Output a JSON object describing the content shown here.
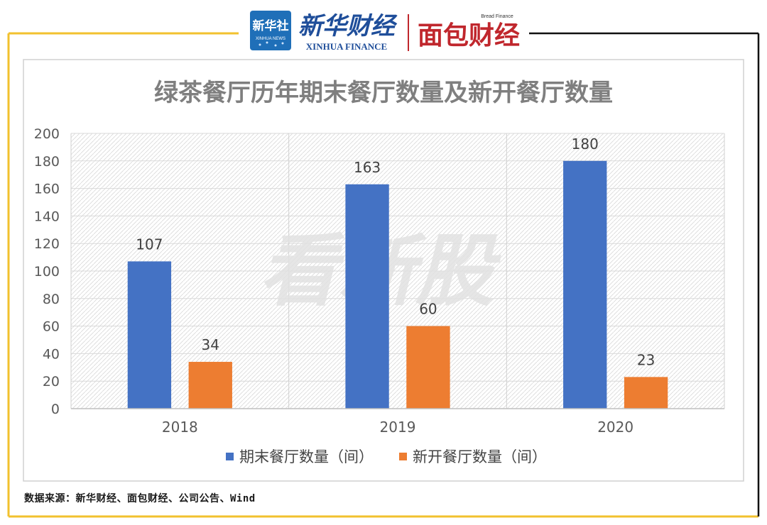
{
  "branding": {
    "xinhua_badge_text": "新华社",
    "xinhua_badge_sub": "XINHUA NEWS",
    "xinhua_finance_cn": "新华财经",
    "xinhua_finance_en": "XINHUA FINANCE",
    "bread_finance_cn": "面包财经",
    "bread_finance_en": "Bread Finance",
    "watermark_text": "看新股"
  },
  "source_note": "数据来源：新华财经、面包财经、公司公告、Wind",
  "colors": {
    "series1": "#4472C4",
    "series2": "#ED7D31",
    "frame_gold": "#F2C12E",
    "title_gray": "#7F7F7F",
    "axis_text": "#595959"
  },
  "chart_data": {
    "type": "bar",
    "title": "绿茶餐厅历年期末餐厅数量及新开餐厅数量",
    "categories": [
      "2018",
      "2019",
      "2020"
    ],
    "series": [
      {
        "name": "期末餐厅数量（间）",
        "values": [
          107,
          163,
          180
        ]
      },
      {
        "name": "新开餐厅数量（间）",
        "values": [
          34,
          60,
          23
        ]
      }
    ],
    "y_ticks": [
      "0",
      "20",
      "40",
      "60",
      "80",
      "100",
      "120",
      "140",
      "160",
      "180",
      "200"
    ],
    "ylim": [
      0,
      200
    ],
    "data_labels": [
      [
        "107",
        "163",
        "180"
      ],
      [
        "34",
        "60",
        "23"
      ]
    ],
    "grid": true,
    "legend_position": "bottom"
  }
}
